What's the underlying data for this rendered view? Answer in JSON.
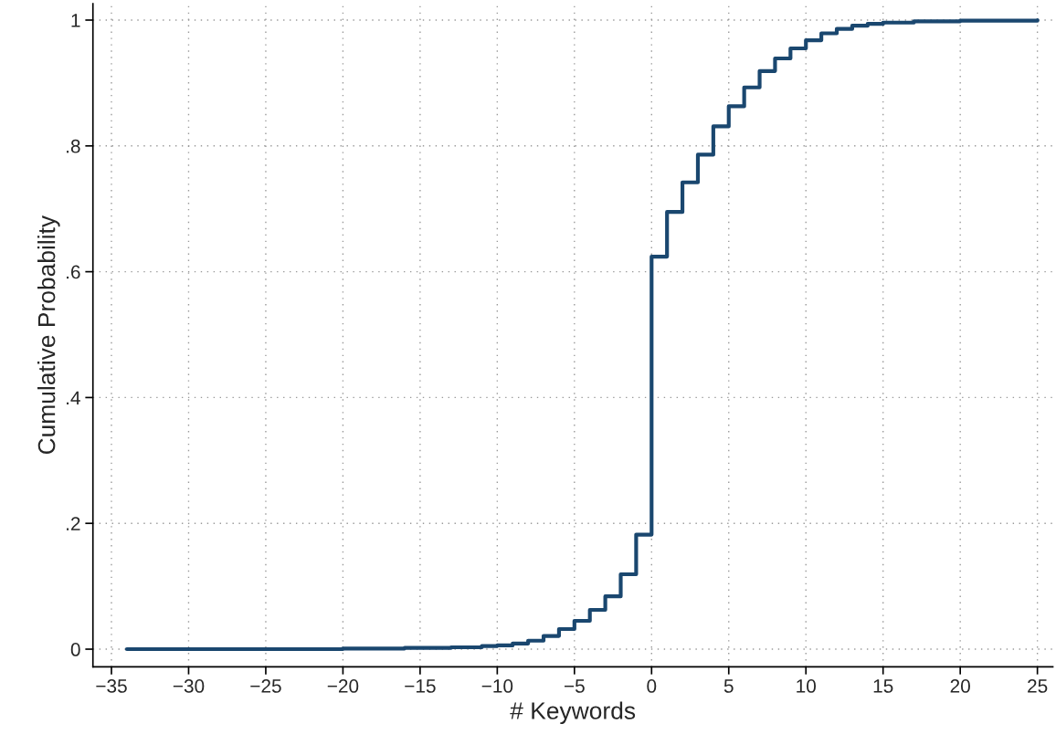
{
  "chart_data": {
    "type": "step",
    "xlabel": "# Keywords",
    "ylabel": "Cumulative Probability",
    "x": [
      -34,
      -20,
      -16,
      -13,
      -11,
      -10,
      -9,
      -8,
      -7,
      -6,
      -5,
      -4,
      -3,
      -2,
      -1,
      0,
      1,
      2,
      3,
      4,
      5,
      6,
      7,
      8,
      9,
      10,
      11,
      12,
      13,
      14,
      15,
      17,
      20,
      25
    ],
    "series": [
      {
        "color": "#1a476f",
        "values": [
          0,
          0.001,
          0.002,
          0.003,
          0.005,
          0.006,
          0.009,
          0.0135,
          0.021,
          0.032,
          0.045,
          0.0625,
          0.084,
          0.119,
          0.182,
          0.624,
          0.695,
          0.742,
          0.786,
          0.831,
          0.863,
          0.893,
          0.919,
          0.939,
          0.955,
          0.968,
          0.979,
          0.986,
          0.991,
          0.994,
          0.996,
          0.998,
          0.999,
          1
        ]
      }
    ],
    "xlim": [
      -36.2,
      26
    ],
    "ylim": [
      -0.028,
      1.026
    ],
    "xticks": [
      {
        "value": -35,
        "label": "−35"
      },
      {
        "value": -30,
        "label": "−30"
      },
      {
        "value": -25,
        "label": "−25"
      },
      {
        "value": -20,
        "label": "−20"
      },
      {
        "value": -15,
        "label": "−15"
      },
      {
        "value": -10,
        "label": "−10"
      },
      {
        "value": -5,
        "label": "−5"
      },
      0,
      5,
      10,
      15,
      20,
      25
    ],
    "yticks": [
      0,
      {
        "value": 0.2,
        "label": ".2"
      },
      {
        "value": 0.4,
        "label": ".4"
      },
      {
        "value": 0.6,
        "label": ".6"
      },
      {
        "value": 0.8,
        "label": ".8"
      },
      1
    ],
    "grid": true,
    "legend": false
  }
}
